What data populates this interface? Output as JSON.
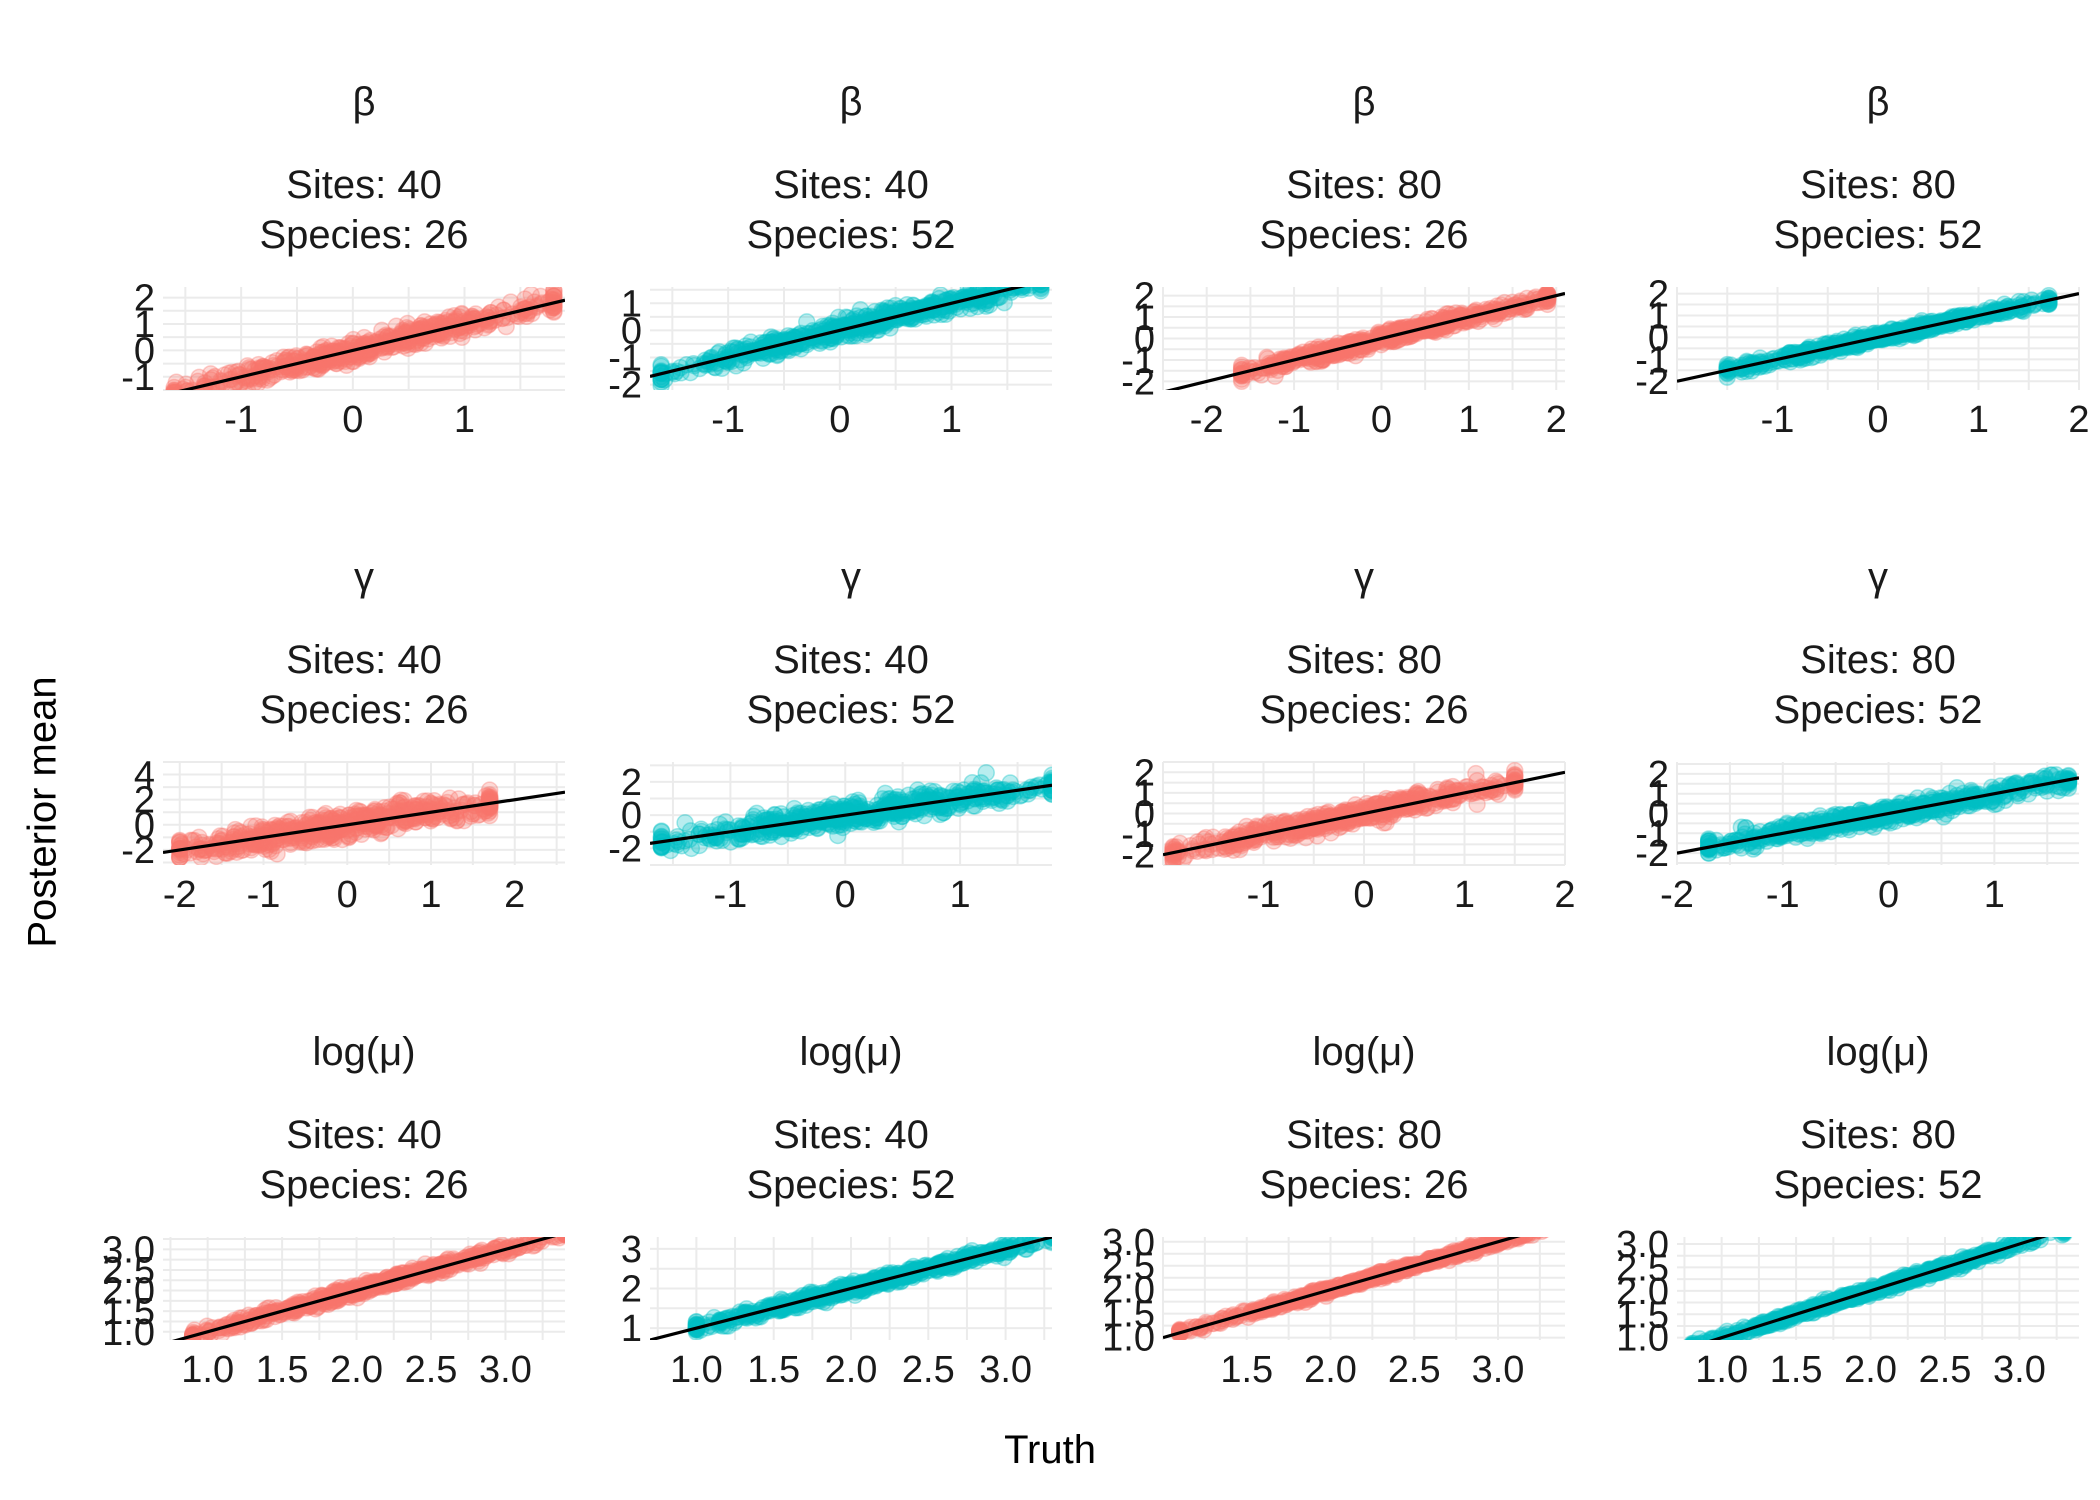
{
  "chart_data": {
    "type": "scatter",
    "layout": "facet grid, 3 rows x 4 columns, free scales, 1:1 reference line in each panel",
    "xlabel": "Truth",
    "ylabel": "Posterior mean",
    "grid": true,
    "legend": "none",
    "colors": {
      "Species: 26": "#F8766D",
      "Species: 52": "#00BFC4",
      "reference_line": "#000000",
      "grid": "#EBEBEB"
    },
    "panels": [
      {
        "title": "β",
        "sites_label": "Sites: 40",
        "species_label": "Species: 26",
        "color": "#F8766D",
        "xlim": [
          -1.7,
          1.9
        ],
        "ylim": [
          -1.5,
          2.4
        ],
        "xticks": [
          "-1",
          "0",
          "1"
        ],
        "yticks": [
          "-1",
          "0",
          "1",
          "2"
        ],
        "points_x_range": [
          -1.6,
          1.8
        ],
        "noise_sd": 0.35,
        "n_points": 600
      },
      {
        "title": "β",
        "sites_label": "Sites: 40",
        "species_label": "Species: 52",
        "color": "#00BFC4",
        "xlim": [
          -1.7,
          1.9
        ],
        "ylim": [
          -2.2,
          1.6
        ],
        "xticks": [
          "-1",
          "0",
          "1"
        ],
        "yticks": [
          "-2",
          "-1",
          "0",
          "1"
        ],
        "points_x_range": [
          -1.6,
          1.8
        ],
        "noise_sd": 0.3,
        "n_points": 600
      },
      {
        "title": "β",
        "sites_label": "Sites: 80",
        "species_label": "Species: 26",
        "color": "#F8766D",
        "xlim": [
          -2.5,
          2.1
        ],
        "ylim": [
          -2.4,
          2.4
        ],
        "xticks": [
          "-2",
          "-1",
          "0",
          "1",
          "2"
        ],
        "yticks": [
          "-2",
          "-1",
          "0",
          "1",
          "2"
        ],
        "points_x_range": [
          -1.6,
          1.9
        ],
        "noise_sd": 0.28,
        "n_points": 600
      },
      {
        "title": "β",
        "sites_label": "Sites: 80",
        "species_label": "Species: 52",
        "color": "#00BFC4",
        "xlim": [
          -2.0,
          2.0
        ],
        "ylim": [
          -2.4,
          2.3
        ],
        "xticks": [
          "-1",
          "0",
          "1",
          "2"
        ],
        "yticks": [
          "-2",
          "-1",
          "0",
          "1",
          "2"
        ],
        "points_x_range": [
          -1.5,
          1.7
        ],
        "noise_sd": 0.2,
        "n_points": 600
      },
      {
        "title": "γ",
        "sites_label": "Sites: 40",
        "species_label": "Species: 26",
        "color": "#F8766D",
        "xlim": [
          -2.2,
          2.6
        ],
        "ylim": [
          -3.2,
          5.0
        ],
        "xticks": [
          "-2",
          "-1",
          "0",
          "1",
          "2"
        ],
        "yticks": [
          "-2",
          "0",
          "2",
          "4"
        ],
        "points_x_range": [
          -2.0,
          1.7
        ],
        "noise_sd": 0.9,
        "n_points": 600
      },
      {
        "title": "γ",
        "sites_label": "Sites: 40",
        "species_label": "Species: 52",
        "color": "#00BFC4",
        "xlim": [
          -1.7,
          1.8
        ],
        "ylim": [
          -3.0,
          3.2
        ],
        "xticks": [
          "-1",
          "0",
          "1"
        ],
        "yticks": [
          "-2",
          "0",
          "2"
        ],
        "points_x_range": [
          -1.6,
          1.8
        ],
        "noise_sd": 0.6,
        "n_points": 600
      },
      {
        "title": "γ",
        "sites_label": "Sites: 80",
        "species_label": "Species: 26",
        "color": "#F8766D",
        "xlim": [
          -2.0,
          2.0
        ],
        "ylim": [
          -2.5,
          2.5
        ],
        "xticks": [
          "-1",
          "0",
          "1",
          "2"
        ],
        "yticks": [
          "-2",
          "-1",
          "0",
          "1",
          "2"
        ],
        "points_x_range": [
          -1.9,
          1.5
        ],
        "noise_sd": 0.4,
        "n_points": 600
      },
      {
        "title": "γ",
        "sites_label": "Sites: 80",
        "species_label": "Species: 52",
        "color": "#00BFC4",
        "xlim": [
          -2.0,
          1.8
        ],
        "ylim": [
          -2.6,
          2.6
        ],
        "xticks": [
          "-2",
          "-1",
          "0",
          "1"
        ],
        "yticks": [
          "-2",
          "-1",
          "0",
          "1",
          "2"
        ],
        "points_x_range": [
          -1.7,
          1.7
        ],
        "noise_sd": 0.4,
        "n_points": 600
      },
      {
        "title": "log(μ)",
        "sites_label": "Sites: 40",
        "species_label": "Species: 26",
        "color": "#F8766D",
        "xlim": [
          0.7,
          3.4
        ],
        "ylim": [
          0.8,
          3.3
        ],
        "xticks": [
          "1.0",
          "1.5",
          "2.0",
          "2.5",
          "3.0"
        ],
        "yticks": [
          "1.0",
          "1.5",
          "2.0",
          "2.5",
          "3.0"
        ],
        "points_x_range": [
          0.9,
          3.4
        ],
        "noise_sd": 0.12,
        "n_points": 600
      },
      {
        "title": "log(μ)",
        "sites_label": "Sites: 40",
        "species_label": "Species: 52",
        "color": "#00BFC4",
        "xlim": [
          0.7,
          3.3
        ],
        "ylim": [
          0.7,
          3.3
        ],
        "xticks": [
          "1.0",
          "1.5",
          "2.0",
          "2.5",
          "3.0"
        ],
        "yticks": [
          "1",
          "2",
          "3"
        ],
        "points_x_range": [
          1.0,
          3.3
        ],
        "noise_sd": 0.12,
        "n_points": 600
      },
      {
        "title": "log(μ)",
        "sites_label": "Sites: 80",
        "species_label": "Species: 26",
        "color": "#F8766D",
        "xlim": [
          1.0,
          3.4
        ],
        "ylim": [
          0.95,
          3.1
        ],
        "xticks": [
          "1.5",
          "2.0",
          "2.5",
          "3.0"
        ],
        "yticks": [
          "1.0",
          "1.5",
          "2.0",
          "2.5",
          "3.0"
        ],
        "points_x_range": [
          1.1,
          3.4
        ],
        "noise_sd": 0.06,
        "n_points": 600
      },
      {
        "title": "log(μ)",
        "sites_label": "Sites: 80",
        "species_label": "Species: 52",
        "color": "#00BFC4",
        "xlim": [
          0.7,
          3.4
        ],
        "ylim": [
          0.95,
          3.15
        ],
        "xticks": [
          "1.0",
          "1.5",
          "2.0",
          "2.5",
          "3.0"
        ],
        "yticks": [
          "1.0",
          "1.5",
          "2.0",
          "2.5",
          "3.0"
        ],
        "points_x_range": [
          0.8,
          3.3
        ],
        "noise_sd": 0.08,
        "n_points": 600
      }
    ]
  }
}
